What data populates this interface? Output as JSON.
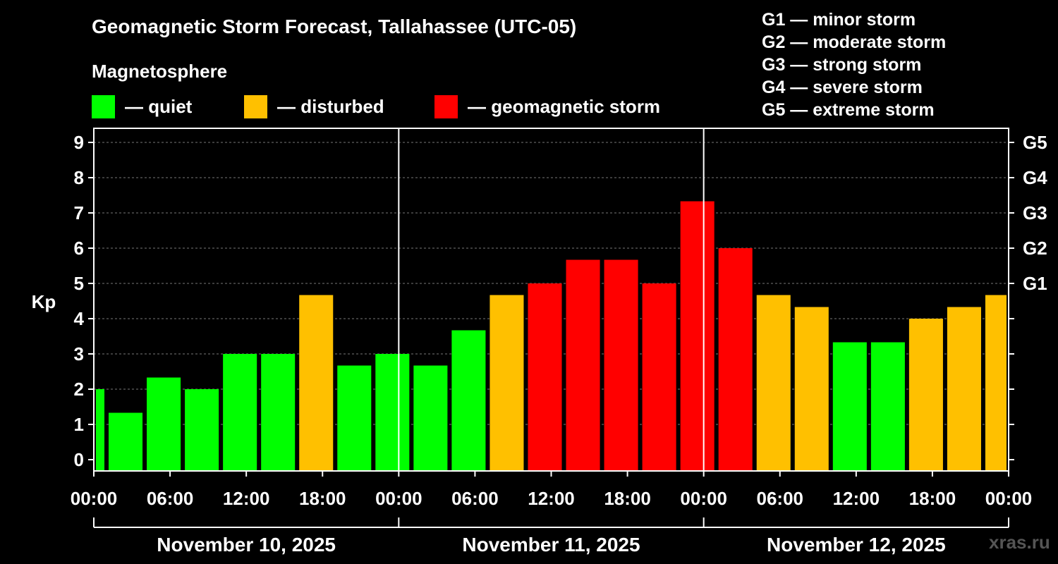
{
  "title": "Geomagnetic Storm Forecast, Tallahassee (UTC-05)",
  "magnetosphere_title": "Magnetosphere",
  "legend": [
    {
      "label": "— quiet",
      "color": "#00ff00"
    },
    {
      "label": "— disturbed",
      "color": "#ffc000"
    },
    {
      "label": "— geomagnetic storm",
      "color": "#ff0000"
    }
  ],
  "g_legend": [
    "G1 — minor storm",
    "G2 — moderate storm",
    "G3 — strong storm",
    "G4 — severe storm",
    "G5 — extreme storm"
  ],
  "watermark": "xras.ru",
  "colors": {
    "quiet": "#00ff00",
    "disturbed": "#ffc000",
    "storm": "#ff0000"
  },
  "chart_data": {
    "type": "bar",
    "title": "Geomagnetic Storm Forecast, Tallahassee (UTC-05)",
    "ylabel": "Kp",
    "ylim": [
      0,
      9
    ],
    "yticks": [
      "0",
      "1",
      "2",
      "3",
      "4",
      "5",
      "6",
      "7",
      "8",
      "9"
    ],
    "right_ticks": [
      {
        "kp": 5,
        "label": "G1"
      },
      {
        "kp": 6,
        "label": "G2"
      },
      {
        "kp": 7,
        "label": "G3"
      },
      {
        "kp": 8,
        "label": "G4"
      },
      {
        "kp": 9,
        "label": "G5"
      }
    ],
    "x_range_hours": [
      0,
      72
    ],
    "xticks": [
      "00:00",
      "06:00",
      "12:00",
      "18:00",
      "00:00",
      "06:00",
      "12:00",
      "18:00",
      "00:00",
      "06:00",
      "12:00",
      "18:00",
      "00:00"
    ],
    "dates": [
      "November 10, 2025",
      "November 11, 2025",
      "November 12, 2025"
    ],
    "day_boundaries_hours": [
      24,
      48
    ],
    "bars": [
      {
        "start": 0,
        "end": 1,
        "value": 2.0,
        "level": "quiet"
      },
      {
        "start": 1,
        "end": 4,
        "value": 1.33,
        "level": "quiet"
      },
      {
        "start": 4,
        "end": 7,
        "value": 2.33,
        "level": "quiet"
      },
      {
        "start": 7,
        "end": 10,
        "value": 2.0,
        "level": "quiet"
      },
      {
        "start": 10,
        "end": 13,
        "value": 3.0,
        "level": "quiet"
      },
      {
        "start": 13,
        "end": 16,
        "value": 3.0,
        "level": "quiet"
      },
      {
        "start": 16,
        "end": 19,
        "value": 4.67,
        "level": "disturbed"
      },
      {
        "start": 19,
        "end": 22,
        "value": 2.67,
        "level": "quiet"
      },
      {
        "start": 22,
        "end": 25,
        "value": 3.0,
        "level": "quiet"
      },
      {
        "start": 25,
        "end": 28,
        "value": 2.67,
        "level": "quiet"
      },
      {
        "start": 28,
        "end": 31,
        "value": 3.67,
        "level": "quiet"
      },
      {
        "start": 31,
        "end": 34,
        "value": 4.67,
        "level": "disturbed"
      },
      {
        "start": 34,
        "end": 37,
        "value": 5.0,
        "level": "storm"
      },
      {
        "start": 37,
        "end": 40,
        "value": 5.67,
        "level": "storm"
      },
      {
        "start": 40,
        "end": 43,
        "value": 5.67,
        "level": "storm"
      },
      {
        "start": 43,
        "end": 46,
        "value": 5.0,
        "level": "storm"
      },
      {
        "start": 46,
        "end": 49,
        "value": 7.33,
        "level": "storm"
      },
      {
        "start": 49,
        "end": 52,
        "value": 6.0,
        "level": "storm"
      },
      {
        "start": 52,
        "end": 55,
        "value": 4.67,
        "level": "disturbed"
      },
      {
        "start": 55,
        "end": 58,
        "value": 4.33,
        "level": "disturbed"
      },
      {
        "start": 58,
        "end": 61,
        "value": 3.33,
        "level": "quiet"
      },
      {
        "start": 61,
        "end": 64,
        "value": 3.33,
        "level": "quiet"
      },
      {
        "start": 64,
        "end": 67,
        "value": 4.0,
        "level": "disturbed"
      },
      {
        "start": 67,
        "end": 70,
        "value": 4.33,
        "level": "disturbed"
      },
      {
        "start": 70,
        "end": 72,
        "value": 4.67,
        "level": "disturbed"
      }
    ]
  }
}
